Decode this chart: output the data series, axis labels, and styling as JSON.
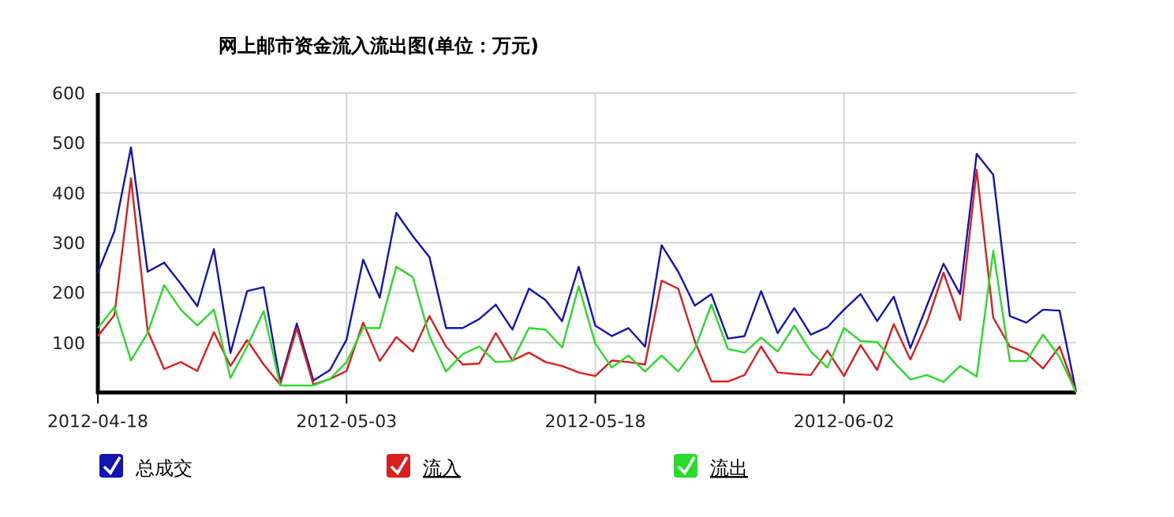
{
  "chart_data": {
    "type": "line",
    "title": "网上邮市资金流入流出图(单位：万元)",
    "x": [
      "2012-04-18",
      "2012-04-19",
      "2012-04-20",
      "2012-04-21",
      "2012-04-22",
      "2012-04-23",
      "2012-04-24",
      "2012-04-25",
      "2012-04-26",
      "2012-04-27",
      "2012-04-28",
      "2012-04-29",
      "2012-04-30",
      "2012-05-01",
      "2012-05-02",
      "2012-05-03",
      "2012-05-04",
      "2012-05-05",
      "2012-05-06",
      "2012-05-07",
      "2012-05-08",
      "2012-05-09",
      "2012-05-10",
      "2012-05-11",
      "2012-05-12",
      "2012-05-13",
      "2012-05-14",
      "2012-05-15",
      "2012-05-16",
      "2012-05-17",
      "2012-05-18",
      "2012-05-19",
      "2012-05-20",
      "2012-05-21",
      "2012-05-22",
      "2012-05-23",
      "2012-05-24",
      "2012-05-25",
      "2012-05-26",
      "2012-05-27",
      "2012-05-28",
      "2012-05-29",
      "2012-05-30",
      "2012-05-31",
      "2012-06-01",
      "2012-06-02",
      "2012-06-03",
      "2012-06-04",
      "2012-06-05",
      "2012-06-06",
      "2012-06-07",
      "2012-06-08",
      "2012-06-09",
      "2012-06-10",
      "2012-06-11",
      "2012-06-12",
      "2012-06-13",
      "2012-06-14",
      "2012-06-15",
      "2012-06-16"
    ],
    "xlim": [
      "2012-04-18",
      "2012-06-16"
    ],
    "xticks": [
      "2012-04-18",
      "2012-05-03",
      "2012-05-18",
      "2012-06-02"
    ],
    "ylim": [
      0,
      600
    ],
    "yticks": [
      {
        "value": 0,
        "label": null
      },
      100,
      200,
      300,
      400,
      500,
      600
    ],
    "grid": true,
    "legend": "bottom",
    "marker": "none",
    "line_style": "solid",
    "series": [
      {
        "name": "总成交",
        "color": "#1414b4",
        "values": [
          240,
          323,
          491,
          242,
          260,
          218,
          173,
          287,
          79,
          203,
          211,
          21,
          138,
          24,
          45,
          106,
          266,
          190,
          360,
          313,
          271,
          129,
          129,
          147,
          176,
          126,
          208,
          185,
          143,
          252,
          134,
          113,
          129,
          92,
          295,
          242,
          174,
          197,
          108,
          113,
          203,
          119,
          169,
          116,
          131,
          166,
          197,
          143,
          192,
          89,
          174,
          258,
          197,
          478,
          436,
          153,
          140,
          166,
          164,
          0
        ]
      },
      {
        "name": "流入",
        "color": "#dc1e1e",
        "values": [
          113,
          155,
          429,
          124,
          47,
          61,
          43,
          121,
          53,
          105,
          56,
          16,
          129,
          16,
          27,
          43,
          140,
          63,
          111,
          82,
          153,
          92,
          56,
          58,
          119,
          64,
          80,
          61,
          53,
          40,
          33,
          64,
          61,
          56,
          224,
          208,
          103,
          22,
          22,
          35,
          92,
          40,
          37,
          35,
          84,
          33,
          95,
          45,
          137,
          66,
          140,
          240,
          145,
          446,
          150,
          92,
          79,
          48,
          92,
          0
        ]
      },
      {
        "name": "流出",
        "color": "#28dc28",
        "values": [
          129,
          171,
          64,
          119,
          215,
          166,
          134,
          166,
          29,
          92,
          163,
          14,
          14,
          14,
          27,
          61,
          129,
          129,
          252,
          231,
          113,
          42,
          77,
          92,
          61,
          63,
          129,
          126,
          90,
          213,
          98,
          50,
          74,
          42,
          74,
          42,
          87,
          176,
          87,
          80,
          110,
          82,
          134,
          82,
          50,
          129,
          103,
          101,
          61,
          26,
          35,
          21,
          53,
          32,
          284,
          63,
          63,
          116,
          71,
          0
        ]
      }
    ]
  }
}
